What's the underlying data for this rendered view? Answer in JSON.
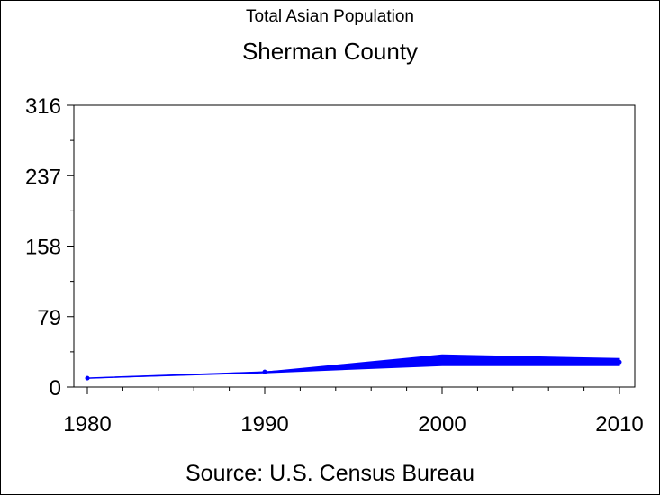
{
  "chart_data": {
    "type": "line",
    "title": "Total Asian Population",
    "subtitle": "Sherman County",
    "source": "Source: U.S. Census Bureau",
    "x": [
      1980,
      1990,
      2000,
      2010
    ],
    "x_tick_labels": [
      "1980",
      "1990",
      "2000",
      "2010"
    ],
    "xlim": [
      1980,
      2010
    ],
    "ylim": [
      0,
      316
    ],
    "y_ticks": [
      0,
      79,
      158,
      237,
      316
    ],
    "y_tick_labels": [
      "0",
      "79",
      "158",
      "237",
      "316"
    ],
    "band": {
      "upper": [
        10,
        17,
        36,
        32
      ],
      "lower": [
        10,
        16,
        24,
        24
      ]
    },
    "series": [
      {
        "values": [
          10,
          17,
          30,
          28
        ]
      }
    ],
    "grid": false,
    "colors": {
      "line": "#0000ff",
      "axis": "#000000"
    }
  }
}
